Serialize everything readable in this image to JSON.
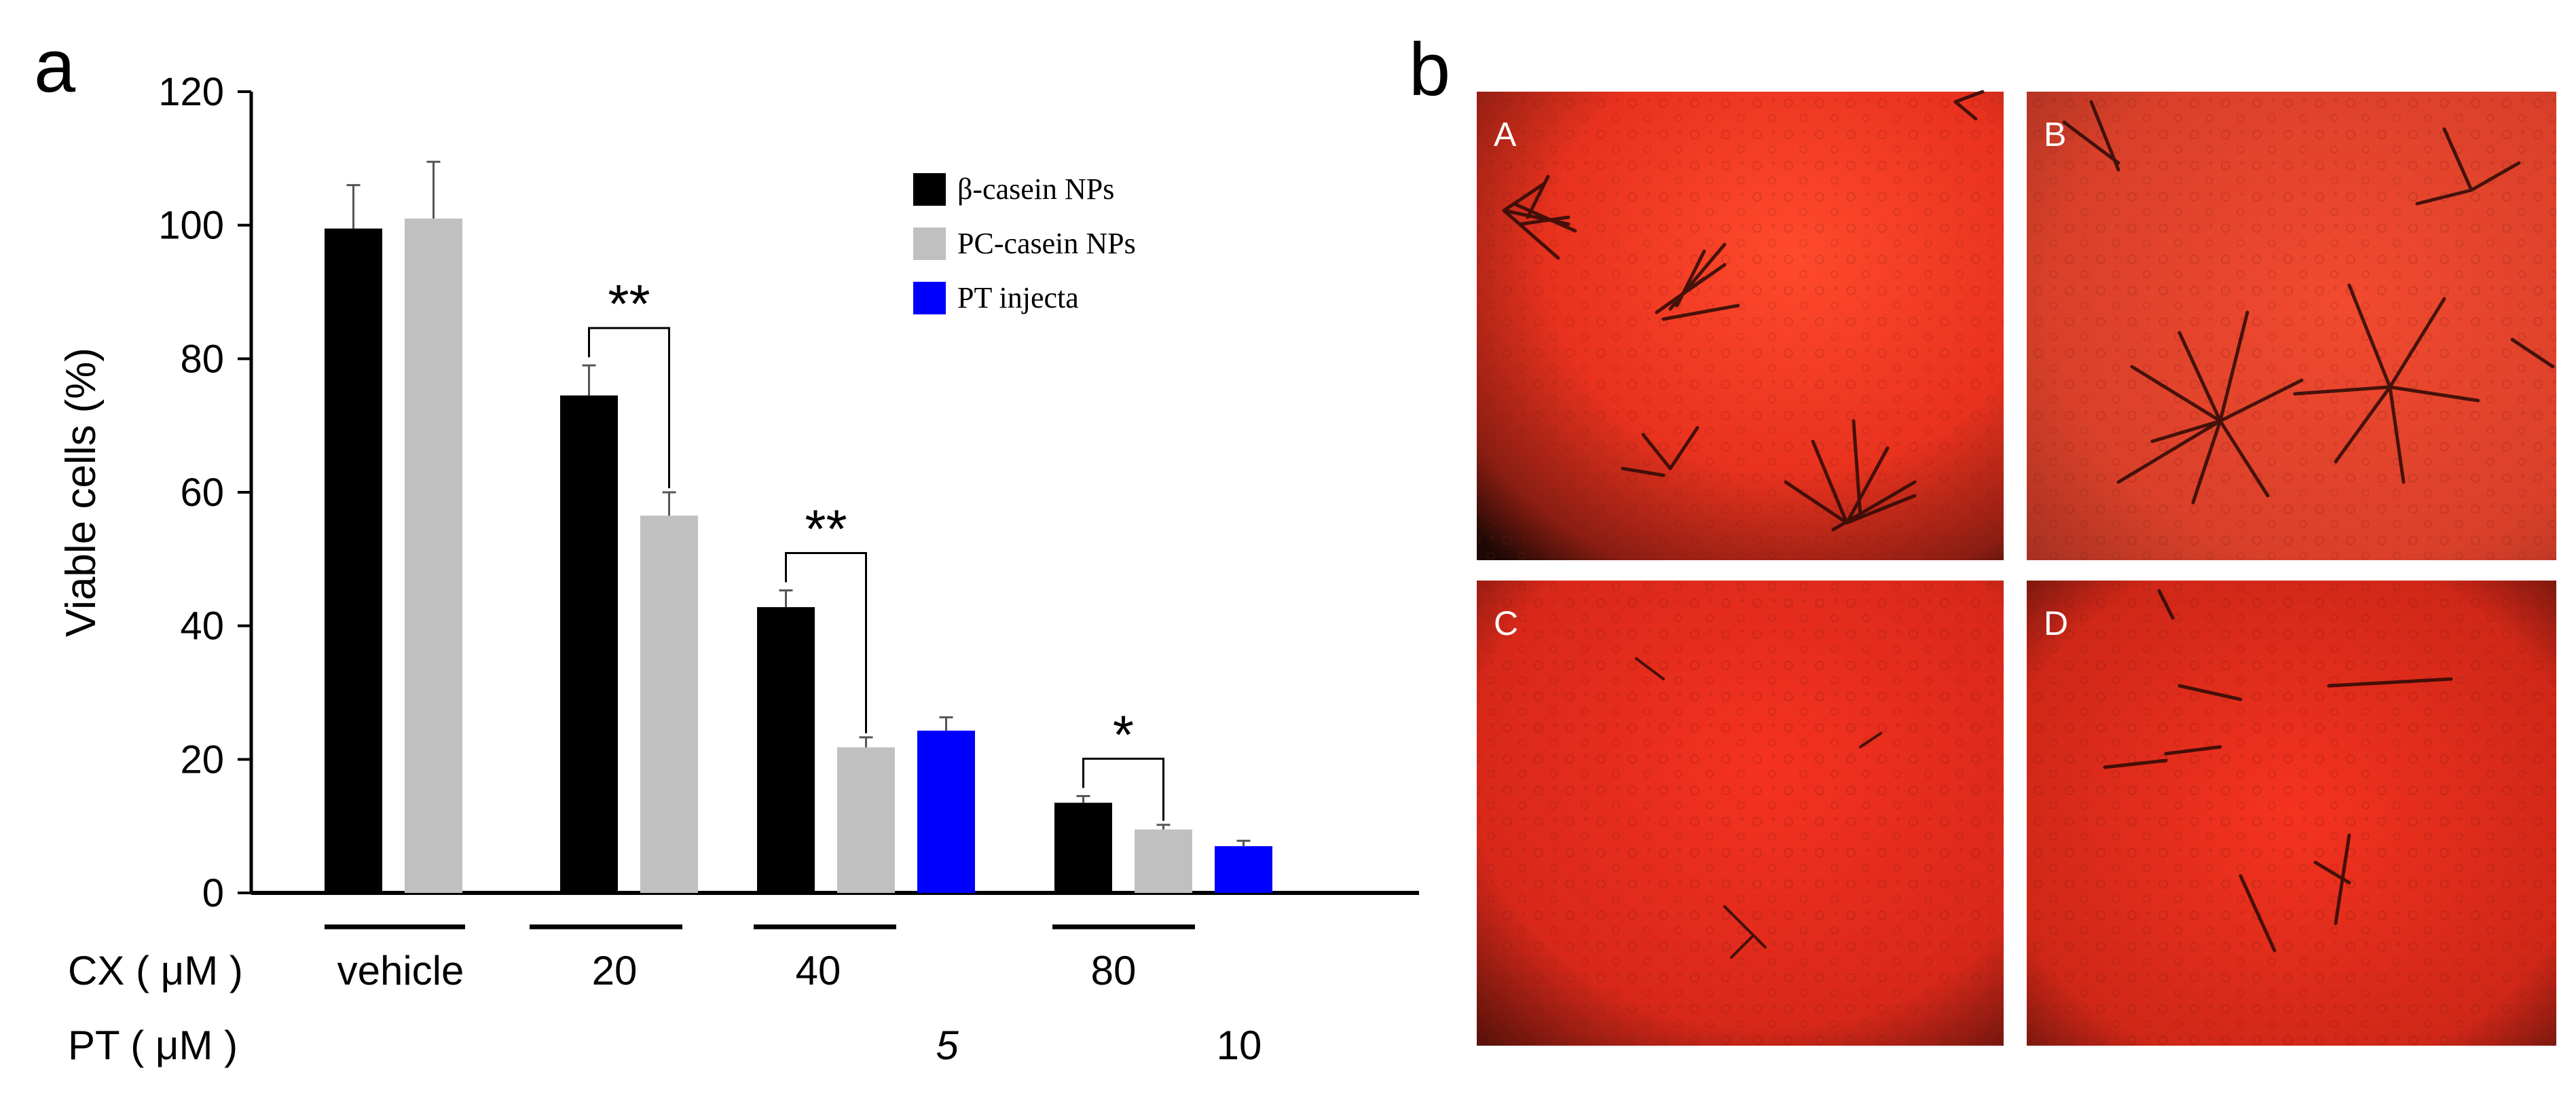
{
  "panel_a_label": "a",
  "panel_b_label": "b",
  "chart_data": {
    "type": "bar",
    "title": "",
    "ylabel": "Viable cells  (%)",
    "xlabel": "",
    "ylim": [
      0,
      120
    ],
    "yticks": [
      0,
      20,
      40,
      60,
      80,
      100,
      120
    ],
    "grid": false,
    "legend_position": "top-right",
    "series": [
      {
        "name": "β-casein NPs",
        "color": "#000000",
        "values": [
          99.5,
          74.5,
          42.8,
          13.5
        ],
        "errors": [
          6.5,
          4.5,
          2.5,
          1.0
        ]
      },
      {
        "name": "PC-casein NPs",
        "color": "#c0c0c0",
        "values": [
          101.0,
          56.5,
          21.8,
          9.5
        ],
        "errors": [
          8.5,
          3.5,
          1.5,
          0.7
        ]
      },
      {
        "name": "PT injecta",
        "color": "#0000ff",
        "values": [
          null,
          null,
          24.3,
          7.0
        ],
        "errors": [
          null,
          null,
          2.0,
          0.8
        ]
      }
    ],
    "groups": [
      {
        "cx": "vehicle",
        "pt": ""
      },
      {
        "cx": "20",
        "pt": ""
      },
      {
        "cx": "40",
        "pt": "5"
      },
      {
        "cx": "80",
        "pt": "10"
      }
    ],
    "row_labels": {
      "cx": "CX ( μM )",
      "pt": "PT ( μM )"
    },
    "annotations": [
      {
        "group": 1,
        "text": "**"
      },
      {
        "group": 2,
        "text": "**"
      },
      {
        "group": 3,
        "text": "*"
      }
    ]
  },
  "micrographs": [
    {
      "label": "A"
    },
    {
      "label": "B"
    },
    {
      "label": "C"
    },
    {
      "label": "D"
    }
  ]
}
